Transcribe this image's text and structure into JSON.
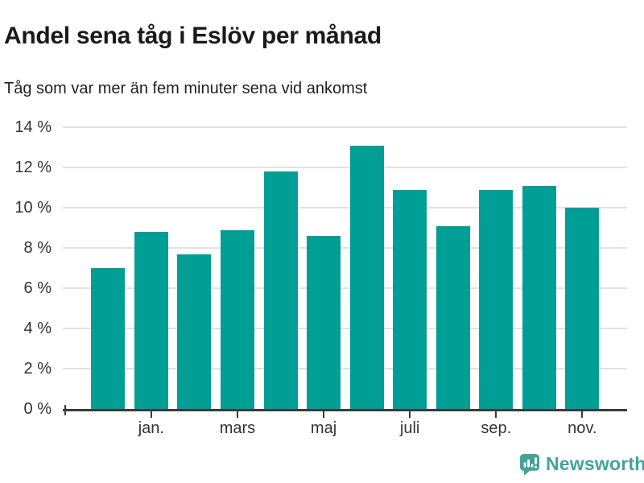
{
  "header": {
    "title": "Andel sena tåg i Eslöv per månad",
    "subtitle": "Tåg som var mer än fem minuter sena vid ankomst"
  },
  "chart_data": {
    "type": "bar",
    "title": "Andel sena tåg i Eslöv per månad",
    "subtitle": "Tåg som var mer än fem minuter sena vid ankomst",
    "unit": "%",
    "categories": [
      "",
      "jan.",
      "",
      "mars",
      "",
      "maj",
      "",
      "juli",
      "",
      "sep.",
      "",
      "nov."
    ],
    "values": [
      7.0,
      8.8,
      7.7,
      8.9,
      11.8,
      8.6,
      13.1,
      10.9,
      9.1,
      10.9,
      11.1,
      10.0
    ],
    "ylim": [
      0,
      14
    ],
    "y_ticks": [
      0,
      2,
      4,
      6,
      8,
      10,
      12,
      14
    ],
    "y_tick_labels": [
      "0 %",
      "2 %",
      "4 %",
      "6 %",
      "8 %",
      "10 %",
      "12 %",
      "14 %"
    ],
    "x_tick_indices": [
      1,
      3,
      5,
      7,
      9,
      11
    ],
    "x_tick_labels": [
      "jan.",
      "mars",
      "maj",
      "juli",
      "sep.",
      "nov."
    ],
    "grid": true,
    "legend": "none",
    "bar_color": "#009e95"
  },
  "footer": {
    "brand_name": "Newsworthy",
    "logo_icon": "speech-bubble-bar-chart-exclamation"
  },
  "colors": {
    "background": "#ffffff",
    "bar": "#009e95",
    "gridline": "#e2e2e2",
    "axis": "#3b3b3b",
    "title_text": "#1a1a1a",
    "subtitle_text": "#1f1f1f",
    "tick_text": "#333333",
    "brand": "#42a39a"
  }
}
